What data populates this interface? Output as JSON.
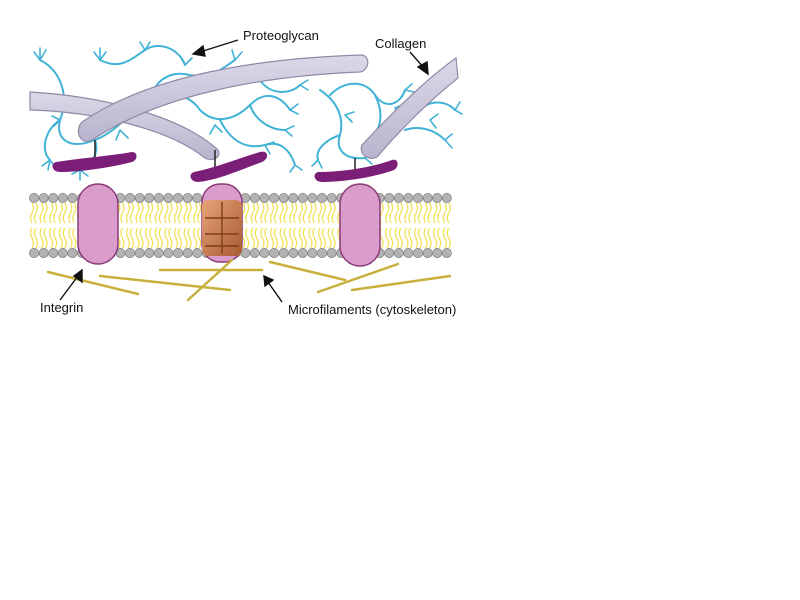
{
  "labels": {
    "proteoglycan": "Proteoglycan",
    "collagen": "Collagen",
    "integrin": "Integrin",
    "microfilaments": "Microfilaments (cytoskeleton)"
  },
  "colors": {
    "proteoglycan": "#41b3d6",
    "collagen_fill": "#cdc8dc",
    "collagen_stroke": "#8f8aa6",
    "fibronectin": "#7a1e78",
    "lipid_head": "#b3b3b3",
    "lipid_tail": "#f2e15a",
    "integrin_fill": "#d99ccb",
    "integrin_stroke": "#8a3a78",
    "microfilament": "#c9b03e",
    "abs_patch": "#c8794a"
  }
}
